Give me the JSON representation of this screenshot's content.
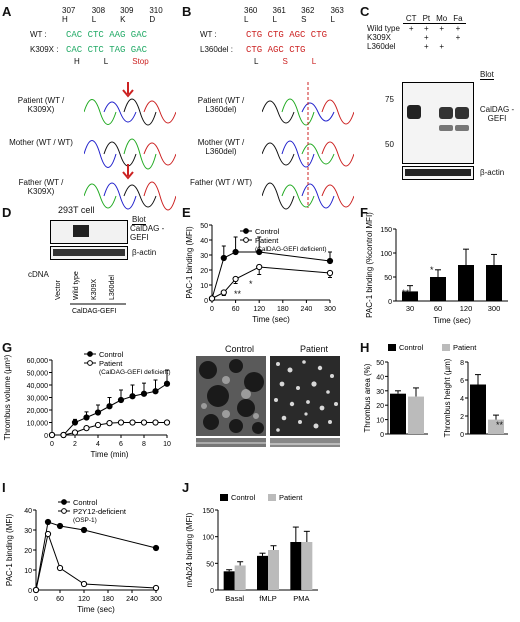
{
  "panels": {
    "A": {
      "letter": "A",
      "codons": [
        "307 H",
        "308 L",
        "309 K",
        "310 D"
      ],
      "wt_label": "WT :",
      "wt_seq": "CAC CTC AAG GAC",
      "mut_label": "K309X :",
      "mut_seq": "CAC CTC TAG GAC",
      "aa": [
        "H",
        "L",
        "Stop"
      ],
      "traces": [
        "Patient (WT / K309X)",
        "Mother (WT / WT)",
        "Father (WT / K309X)"
      ]
    },
    "B": {
      "letter": "B",
      "codons": [
        "360 L",
        "361 L",
        "362 S",
        "363 L"
      ],
      "wt_label": "WT :",
      "wt_seq": "CTG CTG AGC CTG",
      "mut_label": "L360del :",
      "mut_seq": "CTG AGC CTG",
      "aa": [
        "L",
        "S",
        "L"
      ],
      "traces": [
        "Patient (WT / L360del)",
        "Mother (WT / L360del)",
        "Father (WT / WT)"
      ]
    },
    "C": {
      "letter": "C",
      "cols": [
        "CT",
        "Pt",
        "Mo",
        "Fa"
      ],
      "rows": [
        {
          "label": "Wild type",
          "marks": [
            "+",
            "+",
            "+",
            "+"
          ]
        },
        {
          "label": "K309X",
          "marks": [
            "",
            "+",
            "",
            "+"
          ]
        },
        {
          "label": "L360del",
          "marks": [
            "",
            "+",
            "+",
            ""
          ]
        }
      ],
      "mw": [
        "75",
        "50"
      ],
      "blot_header": "Blot",
      "blot1": "CalDAG -GEFI",
      "blot2": "β-actin"
    },
    "D": {
      "letter": "D",
      "cell": "293T cell",
      "blot_header": "Blot",
      "blot1": "CalDAG -GEFI",
      "blot2": "β-actin",
      "cdna": "cDNA",
      "lanes": [
        "Vector",
        "Wild type",
        "K309X",
        "L360del"
      ],
      "group": "CalDAG-GEFI"
    },
    "E": {
      "letter": "E",
      "sig": [
        "*",
        "**"
      ]
    },
    "F": {
      "letter": "F",
      "sig": [
        "**",
        "*"
      ]
    },
    "G": {
      "letter": "G",
      "img_labels": [
        "Control",
        "Patient"
      ]
    },
    "H": {
      "letter": "H",
      "sig": "**"
    },
    "I": {
      "letter": "I"
    },
    "J": {
      "letter": "J"
    }
  },
  "chart_data": [
    {
      "id": "E",
      "type": "line",
      "ylabel": "PAC-1 binding (MFI)",
      "xlabel": "Time (sec)",
      "x": [
        0,
        30,
        60,
        120,
        300
      ],
      "xticks": [
        0,
        60,
        120,
        180,
        240,
        300
      ],
      "ylim": [
        0,
        50
      ],
      "yticks": [
        0,
        10,
        20,
        30,
        40,
        50
      ],
      "series": [
        {
          "name": "Control",
          "values": [
            1,
            28,
            32,
            32,
            26
          ],
          "err": [
            0,
            8,
            10,
            10,
            6
          ],
          "filled": true
        },
        {
          "name": "Patient (CalDAG-GEFI deficient)",
          "values": [
            1,
            5,
            14,
            22,
            18
          ],
          "err": [
            0,
            2,
            3,
            5,
            3
          ],
          "filled": false
        }
      ]
    },
    {
      "id": "F",
      "type": "bar",
      "ylabel": "PAC-1 binding (%control MFI)",
      "xlabel": "Time (sec)",
      "categories": [
        "30",
        "60",
        "120",
        "300"
      ],
      "values": [
        20,
        50,
        75,
        75
      ],
      "err": [
        12,
        15,
        33,
        22
      ],
      "ylim": [
        0,
        150
      ],
      "yticks": [
        0,
        50,
        100,
        150
      ]
    },
    {
      "id": "G",
      "type": "line",
      "ylabel": "Thrombus volume (µm³)",
      "xlabel": "Time (min)",
      "x": [
        0,
        1,
        2,
        3,
        4,
        5,
        6,
        7,
        8,
        9,
        10
      ],
      "xticks": [
        0,
        2,
        4,
        6,
        8,
        10
      ],
      "ylim": [
        0,
        60000
      ],
      "yticks": [
        0,
        10000,
        20000,
        30000,
        40000,
        50000,
        60000
      ],
      "series": [
        {
          "name": "Control",
          "values": [
            0,
            0,
            10000,
            14000,
            18000,
            23000,
            28000,
            31000,
            33000,
            35000,
            41000
          ],
          "err": [
            0,
            0,
            2500,
            4500,
            6000,
            7000,
            8000,
            9000,
            8500,
            9000,
            11000
          ],
          "filled": true
        },
        {
          "name": "Patient (CalDAG-GEFI deficient)",
          "values": [
            0,
            0,
            2000,
            5500,
            8000,
            9500,
            10000,
            10000,
            10000,
            10000,
            10000
          ],
          "err": [
            0,
            0,
            500,
            800,
            900,
            900,
            800,
            800,
            800,
            800,
            800
          ],
          "filled": false
        }
      ]
    },
    {
      "id": "H1",
      "type": "bar",
      "ylabel": "Thrombus area (%)",
      "legend": [
        "Control",
        "Patient"
      ],
      "values": [
        28,
        26
      ],
      "err": [
        2,
        6
      ],
      "ylim": [
        0,
        50
      ],
      "yticks": [
        0,
        10,
        20,
        30,
        40,
        50
      ]
    },
    {
      "id": "H2",
      "type": "bar",
      "ylabel": "Thrombus height (µm)",
      "values": [
        5.5,
        1.6
      ],
      "err": [
        1.1,
        0.5
      ],
      "ylim": [
        0,
        8
      ],
      "yticks": [
        0,
        2,
        4,
        6,
        8
      ]
    },
    {
      "id": "I",
      "type": "line",
      "ylabel": "PAC-1 binding (MFI)",
      "xlabel": "Time (sec)",
      "x": [
        0,
        30,
        60,
        120,
        300
      ],
      "xticks": [
        0,
        60,
        120,
        180,
        240,
        300
      ],
      "ylim": [
        0,
        40
      ],
      "yticks": [
        0,
        10,
        20,
        30,
        40
      ],
      "series": [
        {
          "name": "Control",
          "values": [
            0,
            34,
            32,
            30,
            21
          ],
          "filled": true
        },
        {
          "name": "P2Y12-deficient (OSP-1)",
          "values": [
            0,
            28,
            11,
            3,
            1
          ],
          "filled": false
        }
      ]
    },
    {
      "id": "J",
      "type": "bar",
      "ylabel": "mAb24 binding (MFI)",
      "categories": [
        "Basal",
        "fMLP",
        "PMA"
      ],
      "series": [
        {
          "name": "Control",
          "values": [
            35,
            64,
            90
          ],
          "err": [
            3,
            5,
            28
          ]
        },
        {
          "name": "Patient",
          "values": [
            46,
            75,
            90
          ],
          "err": [
            7,
            8,
            20
          ]
        }
      ],
      "ylim": [
        0,
        150
      ],
      "yticks": [
        0,
        50,
        100,
        150
      ]
    }
  ]
}
